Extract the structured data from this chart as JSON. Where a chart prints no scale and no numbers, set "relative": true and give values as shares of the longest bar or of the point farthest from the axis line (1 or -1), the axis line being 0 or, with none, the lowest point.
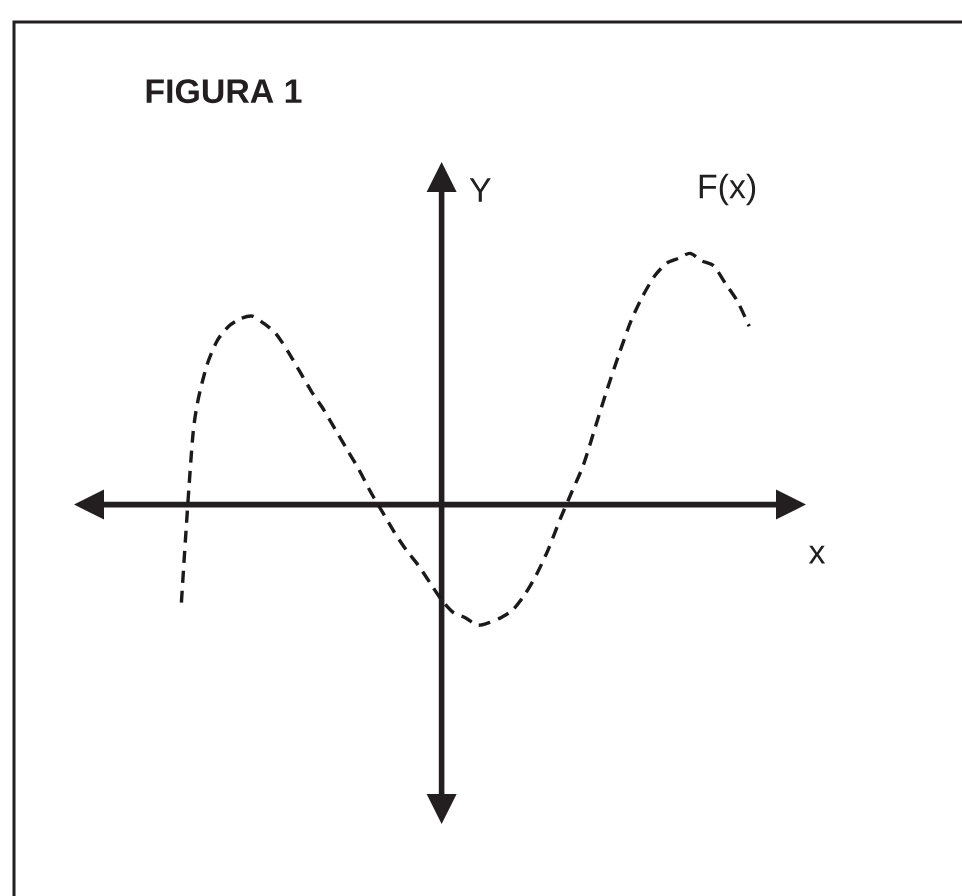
{
  "chart_data": {
    "type": "line",
    "title": "FIGURA 1",
    "xlabel": "x",
    "ylabel": "Y",
    "relative": true,
    "legend": false,
    "line_style": "dashed",
    "marker": "none",
    "categories": [
      null,
      null,
      null,
      null,
      null,
      null,
      null,
      null,
      null,
      null,
      null,
      null,
      null,
      null,
      null,
      null,
      null,
      null,
      null,
      null,
      null,
      null,
      null,
      null,
      null,
      null,
      null,
      null,
      null,
      null,
      null,
      null,
      null,
      null,
      null,
      null,
      null,
      null,
      null,
      null,
      null,
      null,
      null,
      null,
      null,
      null,
      null,
      null,
      null
    ],
    "series": [
      {
        "name": "F(x)",
        "color": "#1a1a1a",
        "values": [
          -0.39,
          0.29,
          0.53,
          0.65,
          0.71,
          0.74,
          0.75,
          0.72,
          0.68,
          0.61,
          0.53,
          0.45,
          0.38,
          0.3,
          0.22,
          0.14,
          0.05,
          -0.03,
          -0.11,
          -0.18,
          -0.24,
          -0.31,
          -0.38,
          -0.43,
          -0.45,
          -0.48,
          -0.47,
          -0.45,
          -0.42,
          -0.36,
          -0.28,
          -0.18,
          -0.06,
          0.05,
          0.16,
          0.31,
          0.46,
          0.6,
          0.73,
          0.83,
          0.91,
          0.96,
          0.98,
          1,
          0.97,
          0.95,
          0.88,
          0.81,
          0.71
        ]
      }
    ]
  }
}
